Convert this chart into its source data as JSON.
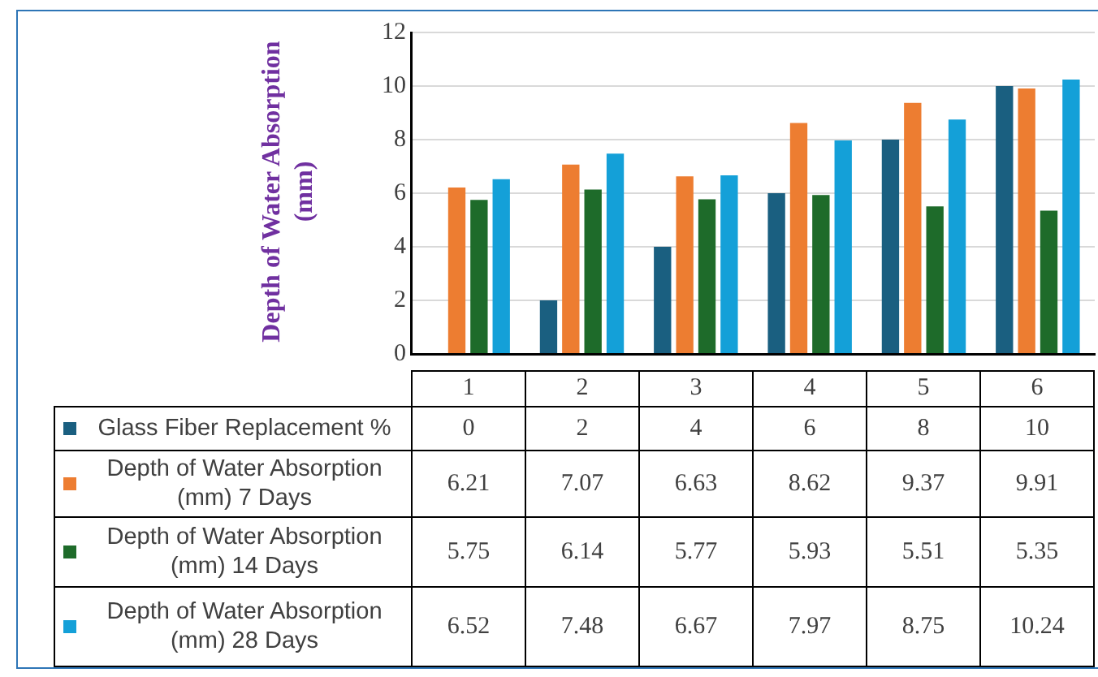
{
  "chart_data": {
    "type": "bar",
    "ylabel": "Depth of Water Absorption (mm)",
    "categories": [
      "1",
      "2",
      "3",
      "4",
      "5",
      "6"
    ],
    "series": [
      {
        "name": "Glass Fiber Replacement %",
        "color": "#1a5f80",
        "values": [
          0,
          2,
          4,
          6,
          8,
          10
        ]
      },
      {
        "name": "Depth of Water Absorption (mm) 7 Days",
        "color": "#ed7d31",
        "values": [
          6.21,
          7.07,
          6.63,
          8.62,
          9.37,
          9.91
        ]
      },
      {
        "name": "Depth of Water Absorption (mm) 14 Days",
        "color": "#1e6b2a",
        "values": [
          5.75,
          6.14,
          5.77,
          5.93,
          5.51,
          5.35
        ]
      },
      {
        "name": "Depth of Water Absorption (mm) 28 Days",
        "color": "#14a0d8",
        "values": [
          6.52,
          7.48,
          6.67,
          7.97,
          8.75,
          10.24
        ]
      }
    ],
    "ylim": [
      0,
      12
    ],
    "yticks": [
      0,
      2,
      4,
      6,
      8,
      10,
      12
    ],
    "grid": "y",
    "legend": "bottom",
    "data_labels": true
  }
}
